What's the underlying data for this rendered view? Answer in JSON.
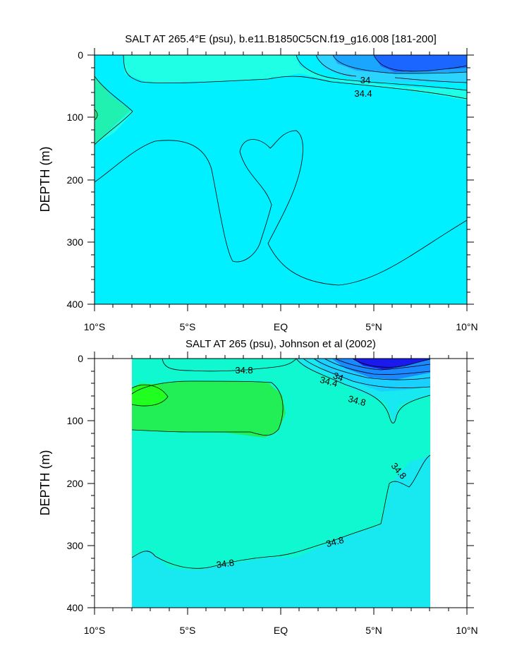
{
  "chart_data": [
    {
      "type": "contour",
      "title": "SALT AT 265.4°E (psu), b.e11.B1850C5CN.f19_g16.008 [181-200]",
      "ylabel": "DEPTH (m)",
      "xlabel": "",
      "xlim": [
        -10,
        10
      ],
      "ylim": [
        0,
        400
      ],
      "y_inverted": true,
      "x_ticks": [
        -10,
        -5,
        0,
        5,
        10
      ],
      "x_tick_labels": [
        "10°S",
        "5°S",
        "EQ",
        "5°N",
        "10°N"
      ],
      "y_ticks": [
        0,
        100,
        200,
        300,
        400
      ],
      "y_tick_labels": [
        "0",
        "100",
        "200",
        "300",
        "400"
      ],
      "contour_labels": [
        {
          "text": "34",
          "x": 5.6,
          "y": 38
        },
        {
          "text": "34.4",
          "x": 5.8,
          "y": 58
        }
      ],
      "fill_colors": {
        "deep_blue": "#1a66ff",
        "blue": "#2ab0ff",
        "cyan": "#00f0ff",
        "aqua": "#1fffe6",
        "teal_green": "#20f0b0"
      }
    },
    {
      "type": "contour",
      "title": "SALT AT 265 (psu), Johnson et al (2002)",
      "ylabel": "DEPTH (m)",
      "xlabel": "",
      "xlim": [
        -10,
        10
      ],
      "ylim": [
        0,
        400
      ],
      "y_inverted": true,
      "data_xrange": [
        -8,
        8
      ],
      "x_ticks": [
        -10,
        -5,
        0,
        5,
        10
      ],
      "x_tick_labels": [
        "10°S",
        "5°S",
        "EQ",
        "5°N",
        "10°N"
      ],
      "y_ticks": [
        0,
        100,
        200,
        300,
        400
      ],
      "y_tick_labels": [
        "0",
        "100",
        "200",
        "300",
        "400"
      ],
      "contour_labels": [
        {
          "text": "34.8",
          "x": -1.9,
          "y": 19
        },
        {
          "text": "34",
          "x": 3.6,
          "y": 30
        },
        {
          "text": "34.4",
          "x": 3.0,
          "y": 36
        },
        {
          "text": "34.8",
          "x": 4.0,
          "y": 68
        },
        {
          "text": "34.8",
          "x": 6.2,
          "y": 182
        },
        {
          "text": "34.8",
          "x": 3.2,
          "y": 297
        },
        {
          "text": "34.8",
          "x": -4.0,
          "y": 334
        }
      ],
      "fill_colors": {
        "navy": "#1a1aee",
        "blue": "#1a88ff",
        "cyan": "#18e8f0",
        "aqua": "#10f8d8",
        "mint": "#10ffc0",
        "green": "#22ee55",
        "bright_green": "#20ff20"
      }
    }
  ]
}
